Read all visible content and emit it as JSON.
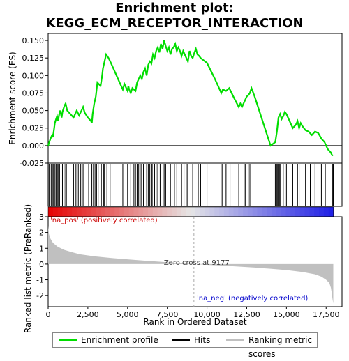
{
  "title_line1": "Enrichment plot:",
  "title_line2": "KEGG_ECM_RECEPTOR_INTERACTION",
  "colors": {
    "enrichment": "#00dd00",
    "hits": "#000000",
    "ranking": "#c0c0c0",
    "zero_line": "#aaaaaa"
  },
  "legend": {
    "items": [
      {
        "label": "Enrichment profile",
        "color": "#00dd00"
      },
      {
        "label": "Hits",
        "color": "#000000"
      },
      {
        "label": "Ranking metric scores",
        "color": "#c0c0c0"
      }
    ]
  },
  "chart_data": [
    {
      "type": "line",
      "ylabel": "Enrichment score (ES)",
      "xlim": [
        0,
        18500
      ],
      "ylim": [
        -0.025,
        0.16
      ],
      "yticks": [
        -0.025,
        0.0,
        0.025,
        0.05,
        0.075,
        0.1,
        0.125,
        0.15
      ],
      "ytick_labels": [
        "-0.025",
        "0.000",
        "0.025",
        "0.050",
        "0.075",
        "0.100",
        "0.125",
        "0.150"
      ],
      "grid": false,
      "series": [
        {
          "name": "Enrichment profile",
          "x": [
            0,
            150,
            250,
            300,
            380,
            420,
            500,
            560,
            620,
            700,
            760,
            850,
            900,
            1000,
            1050,
            1100,
            1200,
            1600,
            1700,
            1800,
            1950,
            2100,
            2200,
            2300,
            2500,
            2700,
            2750,
            2800,
            2900,
            3000,
            3100,
            3300,
            3400,
            3450,
            3550,
            3650,
            3800,
            3950,
            4500,
            4600,
            4700,
            4800,
            4900,
            5000,
            5050,
            5100,
            5200,
            5300,
            5400,
            5500,
            5600,
            5700,
            5800,
            5900,
            6000,
            6100,
            6200,
            6300,
            6400,
            6500,
            6600,
            6700,
            6800,
            6900,
            7000,
            7100,
            7200,
            7300,
            7400,
            7500,
            7600,
            7700,
            7800,
            7900,
            8000,
            8100,
            8200,
            8300,
            8400,
            8500,
            8600,
            8700,
            8800,
            8900,
            9000,
            9100,
            9200,
            9300,
            9400,
            9500,
            9600,
            10000,
            10500,
            10900,
            11000,
            11200,
            11400,
            11700,
            12000,
            12100,
            12200,
            12300,
            12500,
            12600,
            12700,
            12800,
            13000,
            14000,
            14300,
            14400,
            14500,
            14600,
            14700,
            14800,
            14900,
            15000,
            15200,
            15400,
            15600,
            15700,
            15800,
            15900,
            16000,
            16200,
            16400,
            16600,
            16800,
            17000,
            17200,
            17400,
            17600,
            17800,
            17900
          ],
          "y": [
            0.0,
            0.01,
            0.015,
            0.012,
            0.025,
            0.032,
            0.038,
            0.042,
            0.035,
            0.045,
            0.05,
            0.04,
            0.048,
            0.055,
            0.058,
            0.06,
            0.05,
            0.04,
            0.045,
            0.05,
            0.043,
            0.05,
            0.055,
            0.047,
            0.04,
            0.035,
            0.032,
            0.045,
            0.06,
            0.07,
            0.09,
            0.085,
            0.1,
            0.11,
            0.12,
            0.13,
            0.125,
            0.118,
            0.09,
            0.085,
            0.08,
            0.088,
            0.083,
            0.078,
            0.085,
            0.08,
            0.075,
            0.082,
            0.08,
            0.078,
            0.09,
            0.095,
            0.1,
            0.095,
            0.105,
            0.11,
            0.1,
            0.115,
            0.12,
            0.117,
            0.13,
            0.125,
            0.135,
            0.14,
            0.133,
            0.145,
            0.138,
            0.15,
            0.142,
            0.135,
            0.14,
            0.13,
            0.138,
            0.14,
            0.145,
            0.135,
            0.14,
            0.135,
            0.128,
            0.135,
            0.13,
            0.125,
            0.12,
            0.135,
            0.128,
            0.125,
            0.132,
            0.138,
            0.13,
            0.128,
            0.125,
            0.118,
            0.095,
            0.075,
            0.08,
            0.078,
            0.082,
            0.068,
            0.055,
            0.06,
            0.055,
            0.06,
            0.07,
            0.072,
            0.075,
            0.082,
            0.07,
            0.0,
            0.005,
            0.02,
            0.04,
            0.045,
            0.038,
            0.042,
            0.048,
            0.045,
            0.035,
            0.025,
            0.03,
            0.035,
            0.025,
            0.032,
            0.028,
            0.022,
            0.02,
            0.015,
            0.02,
            0.018,
            0.01,
            0.005,
            -0.005,
            -0.01,
            -0.015
          ]
        }
      ]
    },
    {
      "type": "scatter",
      "name": "Hits",
      "xlim": [
        0,
        18500
      ],
      "x": [
        60,
        110,
        190,
        270,
        340,
        430,
        500,
        580,
        650,
        720,
        900,
        1000,
        1100,
        1150,
        1600,
        1750,
        1900,
        2050,
        2200,
        2550,
        2750,
        2850,
        2950,
        3050,
        3150,
        3350,
        3500,
        3550,
        3700,
        3900,
        4700,
        5000,
        5200,
        5400,
        5500,
        5600,
        5700,
        5850,
        6000,
        6200,
        6300,
        6400,
        6500,
        6550,
        6700,
        6800,
        6900,
        7050,
        7300,
        7400,
        7700,
        7950,
        8100,
        8400,
        8550,
        8750,
        9100,
        9250,
        9450,
        9600,
        10000,
        10950,
        11200,
        11450,
        12000,
        12400,
        12450,
        12600,
        12700,
        14300,
        14400,
        14450,
        14500,
        14550,
        14600,
        14800,
        15000,
        15400,
        15700,
        15800,
        16200,
        16500,
        16800,
        17200,
        17450,
        17900,
        17950
      ]
    },
    {
      "type": "area",
      "name": "Ranking metric scores",
      "ylabel": "Ranked list metric (PreRanked)",
      "xlabel": "Rank in Ordered Dataset",
      "xlim": [
        0,
        18500
      ],
      "ylim": [
        -2.7,
        3.0
      ],
      "xticks": [
        0,
        2500,
        5000,
        7500,
        10000,
        12500,
        15000,
        17500
      ],
      "xtick_labels": [
        "0",
        "2,500",
        "5,000",
        "7,500",
        "10,000",
        "12,500",
        "15,000",
        "17,500"
      ],
      "yticks": [
        -2,
        -1,
        0,
        1,
        2,
        3
      ],
      "ytick_labels": [
        "-2",
        "-1",
        "0",
        "1",
        "2",
        "3"
      ],
      "x": [
        0,
        50,
        150,
        300,
        600,
        1000,
        1500,
        2000,
        3000,
        4000,
        5000,
        6000,
        7000,
        8000,
        9177,
        10000,
        11000,
        12000,
        13000,
        14000,
        15000,
        16000,
        16800,
        17200,
        17500,
        17700,
        17800,
        17850,
        17900,
        17950
      ],
      "y": [
        2.4,
        1.9,
        1.6,
        1.35,
        1.1,
        0.9,
        0.75,
        0.62,
        0.48,
        0.38,
        0.3,
        0.22,
        0.15,
        0.08,
        0.0,
        -0.05,
        -0.1,
        -0.16,
        -0.22,
        -0.3,
        -0.38,
        -0.5,
        -0.65,
        -0.8,
        -1.0,
        -1.2,
        -1.5,
        -1.8,
        -2.2,
        -2.5
      ],
      "annotations": [
        "Zero cross at 9177",
        "'na_pos' (positively correlated)",
        "'na_neg' (negatively correlated)"
      ],
      "zero_cross": 9177
    }
  ],
  "annotations": {
    "zero_cross": "Zero cross at 9177",
    "pos_label": "'na_pos' (positively correlated)",
    "neg_label": "'na_neg' (negatively correlated)"
  },
  "axis_labels": {
    "es_y": "Enrichment score (ES)",
    "metric_y": "Ranked list metric (PreRanked)",
    "x": "Rank in Ordered Dataset"
  }
}
